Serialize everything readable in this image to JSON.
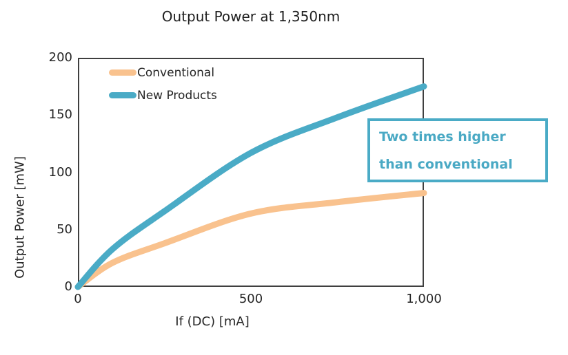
{
  "title": "Output Power at 1,350nm",
  "axes": {
    "x_label": "If  (DC)  [mA]",
    "y_label": "Output Power [mW]"
  },
  "legend": {
    "items": [
      {
        "label": "Conventional"
      },
      {
        "label": "New Products"
      }
    ]
  },
  "annotation": {
    "line1": "Two times higher",
    "line2": "than conventional"
  },
  "colors": {
    "conventional": "#f9c28e",
    "new_products": "#4aabc6",
    "axis": "#3f3f3f",
    "text": "#262626",
    "annotation_border": "#4aabc6",
    "annotation_text": "#4aa9c4",
    "background": "#ffffff"
  },
  "chart_data": {
    "type": "line",
    "title": "Output Power at 1,350nm",
    "xlabel": "If (DC) [mA]",
    "ylabel": "Output Power [mW]",
    "xlim": [
      0,
      1000
    ],
    "ylim": [
      0,
      200
    ],
    "x_ticks": [
      0,
      500,
      1000
    ],
    "x_tick_labels": [
      "0",
      "500",
      "1,000"
    ],
    "y_ticks": [
      0,
      50,
      100,
      150,
      200
    ],
    "y_tick_labels": [
      "0",
      "50",
      "100",
      "150",
      "200"
    ],
    "grid": false,
    "legend_position": "top-left",
    "x": [
      0,
      100,
      250,
      500,
      750,
      1000
    ],
    "series": [
      {
        "name": "Conventional",
        "color": "#f9c28e",
        "values": [
          0,
          21,
          38,
          64,
          74,
          82
        ]
      },
      {
        "name": "New Products",
        "color": "#4aabc6",
        "values": [
          0,
          33,
          66,
          117,
          148,
          175
        ]
      }
    ],
    "annotation": "Two times higher than conventional"
  }
}
